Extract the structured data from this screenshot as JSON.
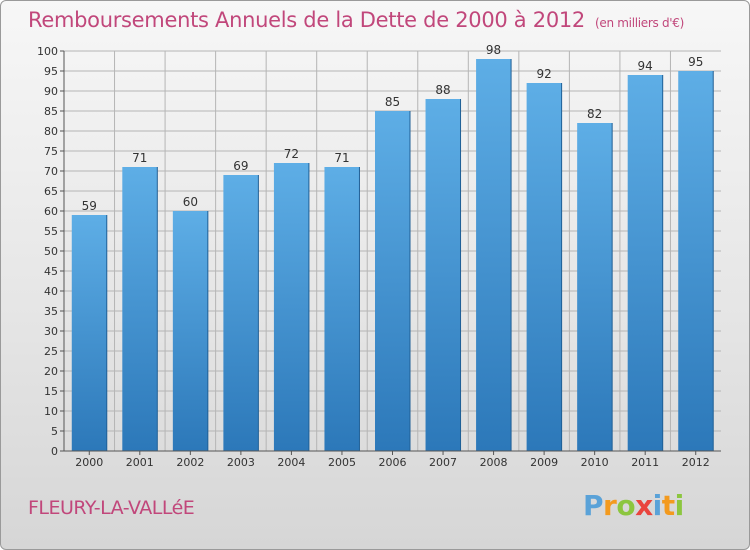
{
  "header": {
    "title": "Remboursements Annuels de la Dette de 2000 à 2012",
    "unit": "(en milliers d'€)"
  },
  "footer": {
    "place": "FLEURY-LA-VALLéE",
    "logo_letters": [
      "P",
      "r",
      "o",
      "x",
      "i",
      "t",
      "i"
    ],
    "logo_colors": [
      "#5aa2d8",
      "#f39a1e",
      "#8cc63f",
      "#e9443d",
      "#5aa2d8",
      "#f39a1e",
      "#8cc63f"
    ]
  },
  "colors": {
    "bar_top": "#5eaee6",
    "bar_bottom": "#2c78b9",
    "text": "#c1477b",
    "grid": "#b5b5b5"
  },
  "chart_data": {
    "type": "bar",
    "title": "Remboursements Annuels de la Dette de 2000 à 2012",
    "categories": [
      "2000",
      "2001",
      "2002",
      "2003",
      "2004",
      "2005",
      "2006",
      "2007",
      "2008",
      "2009",
      "2010",
      "2011",
      "2012"
    ],
    "values": [
      59,
      71,
      60,
      69,
      72,
      71,
      85,
      88,
      98,
      92,
      82,
      94,
      95
    ],
    "ylim": [
      0,
      100
    ],
    "ytick_step": 5,
    "grid": true,
    "legend": "none"
  }
}
